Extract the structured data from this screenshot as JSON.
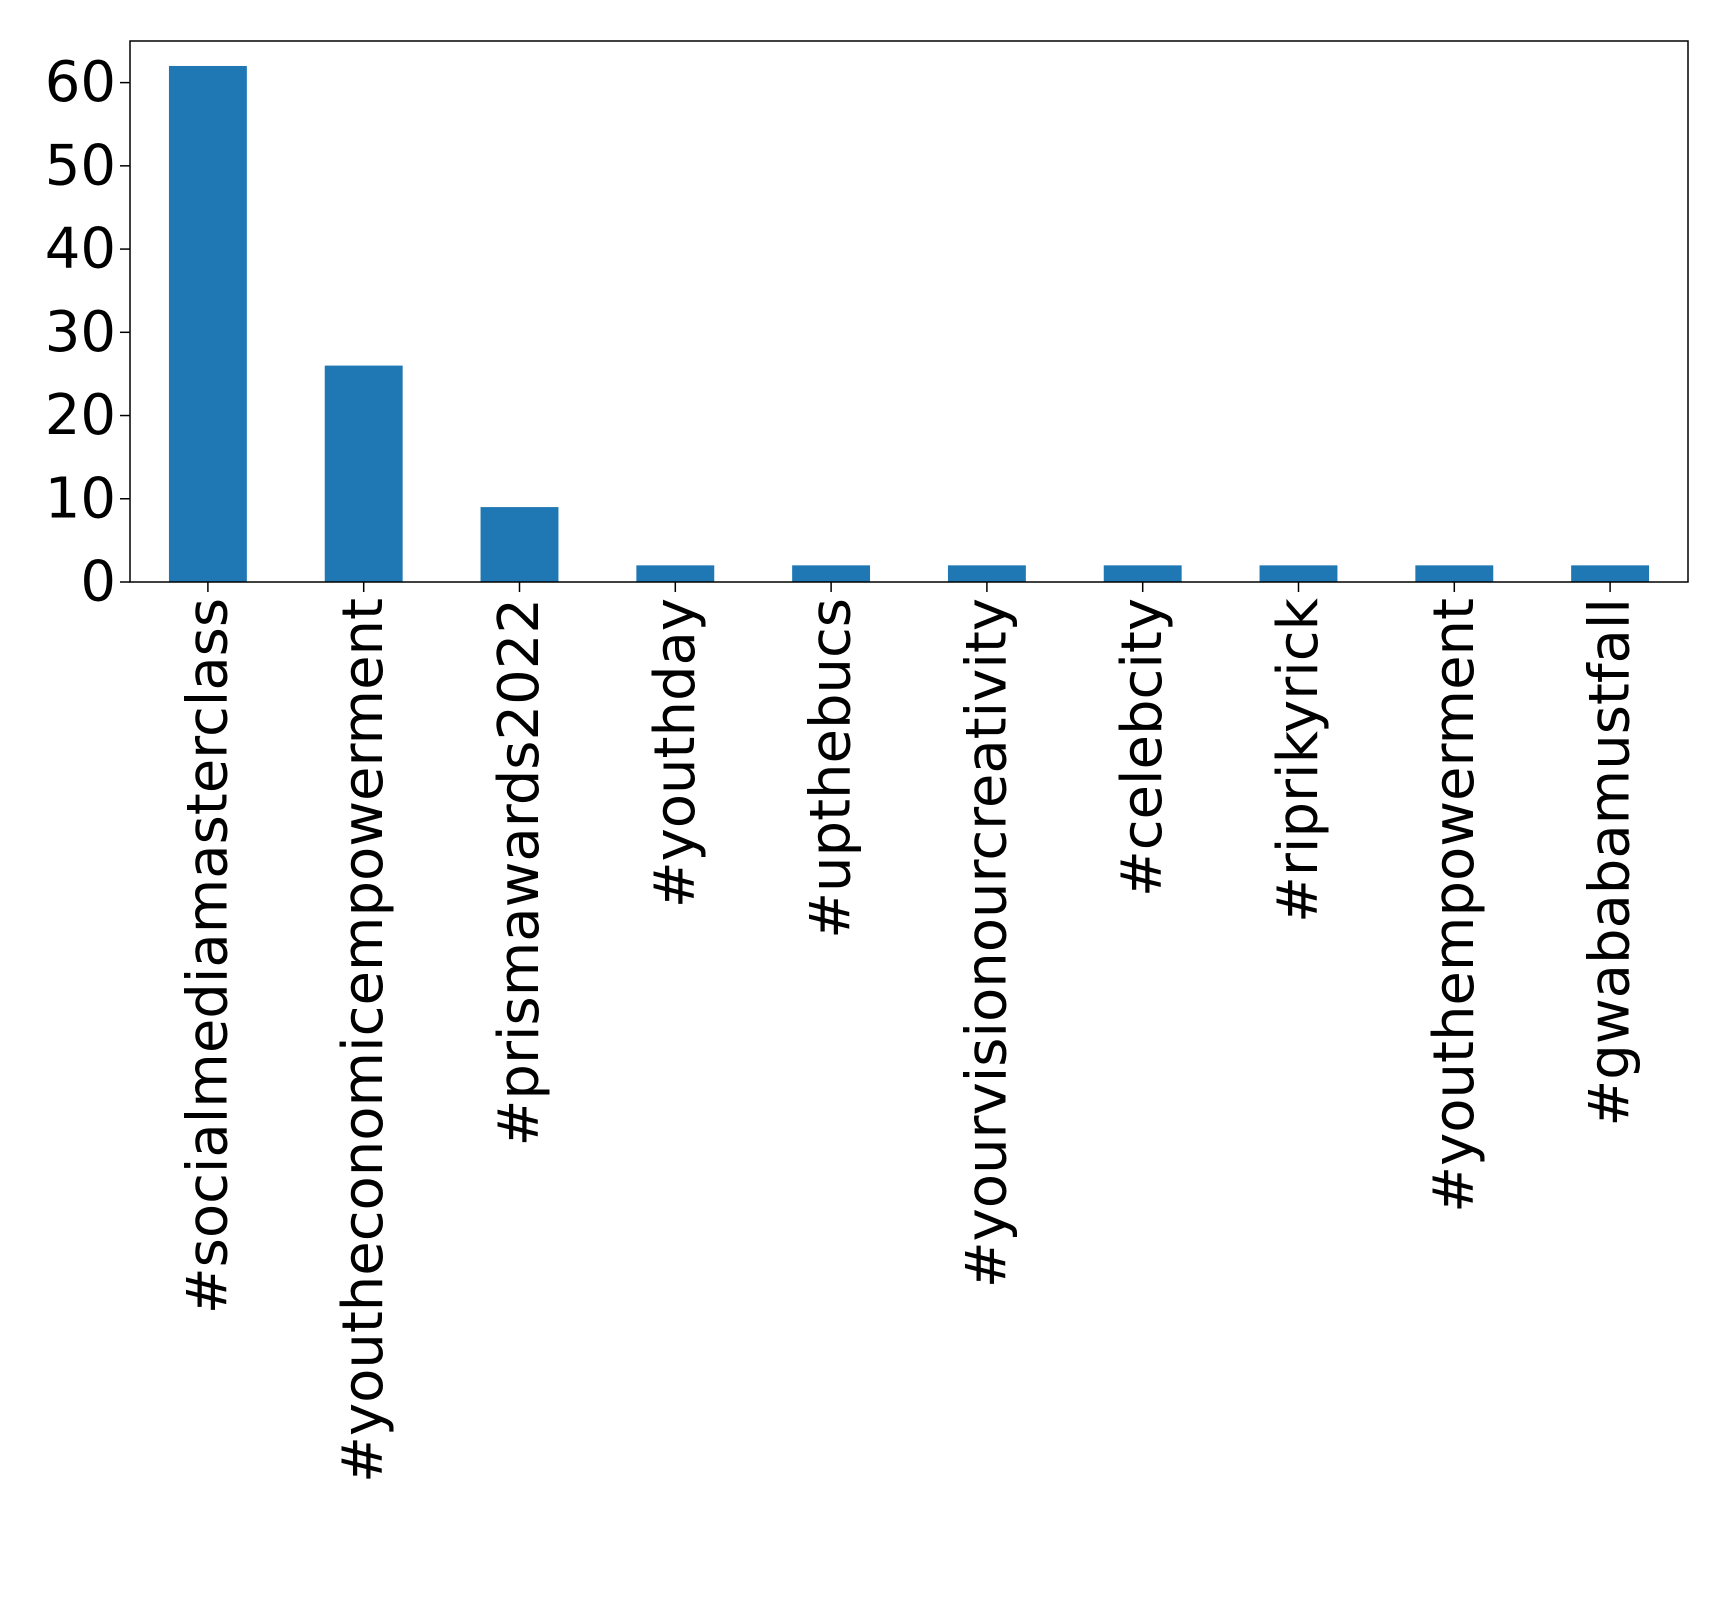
{
  "chart_data": {
    "type": "bar",
    "title": "",
    "xlabel": "",
    "ylabel": "",
    "categories": [
      "#socialmediamasterclass",
      "#youtheconomicempowerment",
      "#prismawards2022",
      "#youthday",
      "#upthebucs",
      "#yourvisionourcreativity",
      "#celebcity",
      "#riprikyrick",
      "#youthempowerment",
      "#gwababamustfall"
    ],
    "values": [
      62,
      26,
      9,
      2,
      2,
      2,
      2,
      2,
      2,
      2
    ],
    "ylim": [
      0,
      65
    ],
    "yticks": [
      0,
      10,
      20,
      30,
      40,
      50,
      60
    ],
    "grid": false,
    "legend": "none",
    "bar_color": "#1f77b4"
  }
}
